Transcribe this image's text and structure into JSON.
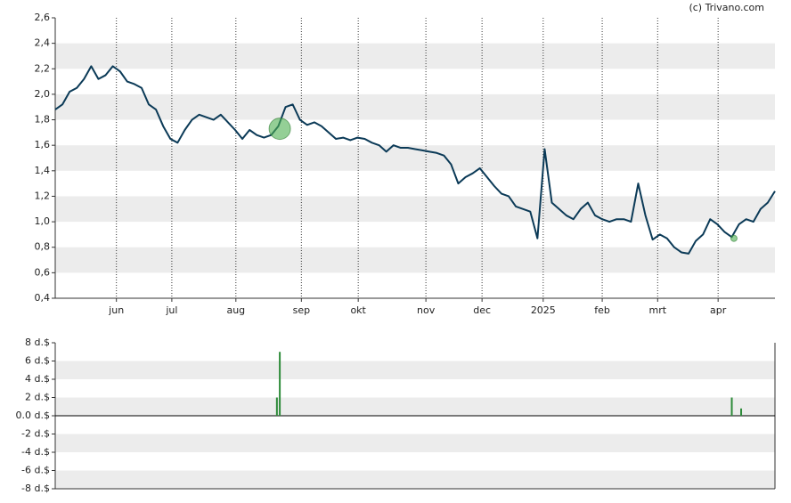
{
  "credit": "(c) Trivano.com",
  "chart_data": [
    {
      "type": "line",
      "x": [
        0,
        1,
        2,
        3,
        4,
        5,
        6,
        7,
        8,
        9,
        10,
        11,
        12,
        13,
        14,
        15,
        16,
        17,
        18,
        19,
        20,
        21,
        22,
        23,
        24,
        25,
        26,
        27,
        28,
        29,
        30,
        31,
        32,
        33,
        34,
        35,
        36,
        37,
        38,
        39,
        40,
        41,
        42,
        43,
        44,
        45,
        46,
        47,
        48,
        49,
        50,
        51,
        52,
        53,
        54,
        55,
        56,
        57,
        58,
        59,
        60,
        61,
        62,
        63,
        64,
        65,
        66,
        67,
        68,
        69,
        70,
        71,
        72,
        73,
        74,
        75,
        76,
        77,
        78,
        79,
        80,
        81,
        82,
        83,
        84,
        85,
        86,
        87,
        88,
        89,
        90,
        91,
        92,
        93,
        94,
        95,
        96,
        97,
        98,
        99,
        100
      ],
      "series": [
        {
          "color": "#0b3a57",
          "values": [
            1.88,
            1.92,
            2.02,
            2.05,
            2.12,
            2.22,
            2.12,
            2.15,
            2.22,
            2.18,
            2.1,
            2.08,
            2.05,
            1.92,
            1.88,
            1.75,
            1.65,
            1.62,
            1.72,
            1.8,
            1.84,
            1.82,
            1.8,
            1.84,
            1.78,
            1.72,
            1.65,
            1.72,
            1.68,
            1.66,
            1.68,
            1.75,
            1.9,
            1.92,
            1.8,
            1.76,
            1.78,
            1.75,
            1.7,
            1.65,
            1.66,
            1.64,
            1.66,
            1.65,
            1.62,
            1.6,
            1.55,
            1.6,
            1.58,
            1.58,
            1.57,
            1.56,
            1.55,
            1.54,
            1.52,
            1.45,
            1.3,
            1.35,
            1.38,
            1.42,
            1.35,
            1.28,
            1.22,
            1.2,
            1.12,
            1.1,
            1.08,
            0.87,
            1.57,
            1.15,
            1.1,
            1.05,
            1.02,
            1.1,
            1.15,
            1.05,
            1.02,
            1.0,
            1.02,
            1.02,
            1.0,
            1.3,
            1.05,
            0.86,
            0.9,
            0.87,
            0.8,
            0.76,
            0.75,
            0.85,
            0.9,
            1.02,
            0.98,
            0.92,
            0.88,
            0.98,
            1.02,
            1.0,
            1.1,
            1.15,
            1.24
          ]
        }
      ],
      "markers": {
        "x": [
          31.2,
          94.3
        ],
        "y": [
          1.73,
          0.87
        ],
        "color": "#4caf50"
      },
      "xlim": [
        0,
        100
      ],
      "xticks": [
        {
          "value": 8.5,
          "label": "jun"
        },
        {
          "value": 16.2,
          "label": "jul"
        },
        {
          "value": 25.1,
          "label": "aug"
        },
        {
          "value": 34.2,
          "label": "sep"
        },
        {
          "value": 42.1,
          "label": "okt"
        },
        {
          "value": 51.5,
          "label": "nov"
        },
        {
          "value": 59.3,
          "label": "dec"
        },
        {
          "value": 67.8,
          "label": "2025"
        },
        {
          "value": 76,
          "label": "feb"
        },
        {
          "value": 83.7,
          "label": "mrt"
        },
        {
          "value": 92.1,
          "label": "apr"
        }
      ],
      "ylim": [
        0.4,
        2.6
      ],
      "yticks": [
        {
          "value": 0.4,
          "label": "0,4"
        },
        {
          "value": 0.6,
          "label": "0,6"
        },
        {
          "value": 0.8,
          "label": "0,8"
        },
        {
          "value": 1.0,
          "label": "1,0"
        },
        {
          "value": 1.2,
          "label": "1,2"
        },
        {
          "value": 1.4,
          "label": "1,4"
        },
        {
          "value": 1.6,
          "label": "1,6"
        },
        {
          "value": 1.8,
          "label": "1,8"
        },
        {
          "value": 2.0,
          "label": "2,0"
        },
        {
          "value": 2.2,
          "label": "2,2"
        },
        {
          "value": 2.4,
          "label": "2,4"
        },
        {
          "value": 2.6,
          "label": "2,6"
        }
      ],
      "grid": true
    },
    {
      "type": "bar",
      "x": [
        30.8,
        31.2,
        94,
        95.3
      ],
      "values": [
        2,
        7,
        2,
        0.8
      ],
      "color": "#2e8b3a",
      "xlim": [
        0,
        100
      ],
      "ylim": [
        -8,
        8
      ],
      "yticks": [
        {
          "value": -8,
          "label": "-8 d.$"
        },
        {
          "value": -6,
          "label": "-6 d.$"
        },
        {
          "value": -4,
          "label": "-4 d.$"
        },
        {
          "value": -2,
          "label": "-2 d.$"
        },
        {
          "value": 0,
          "label": "0.0 d.$"
        },
        {
          "value": 2,
          "label": "2 d.$"
        },
        {
          "value": 4,
          "label": "4 d.$"
        },
        {
          "value": 6,
          "label": "6 d.$"
        },
        {
          "value": 8,
          "label": "8 d.$"
        }
      ],
      "grid": true
    }
  ]
}
